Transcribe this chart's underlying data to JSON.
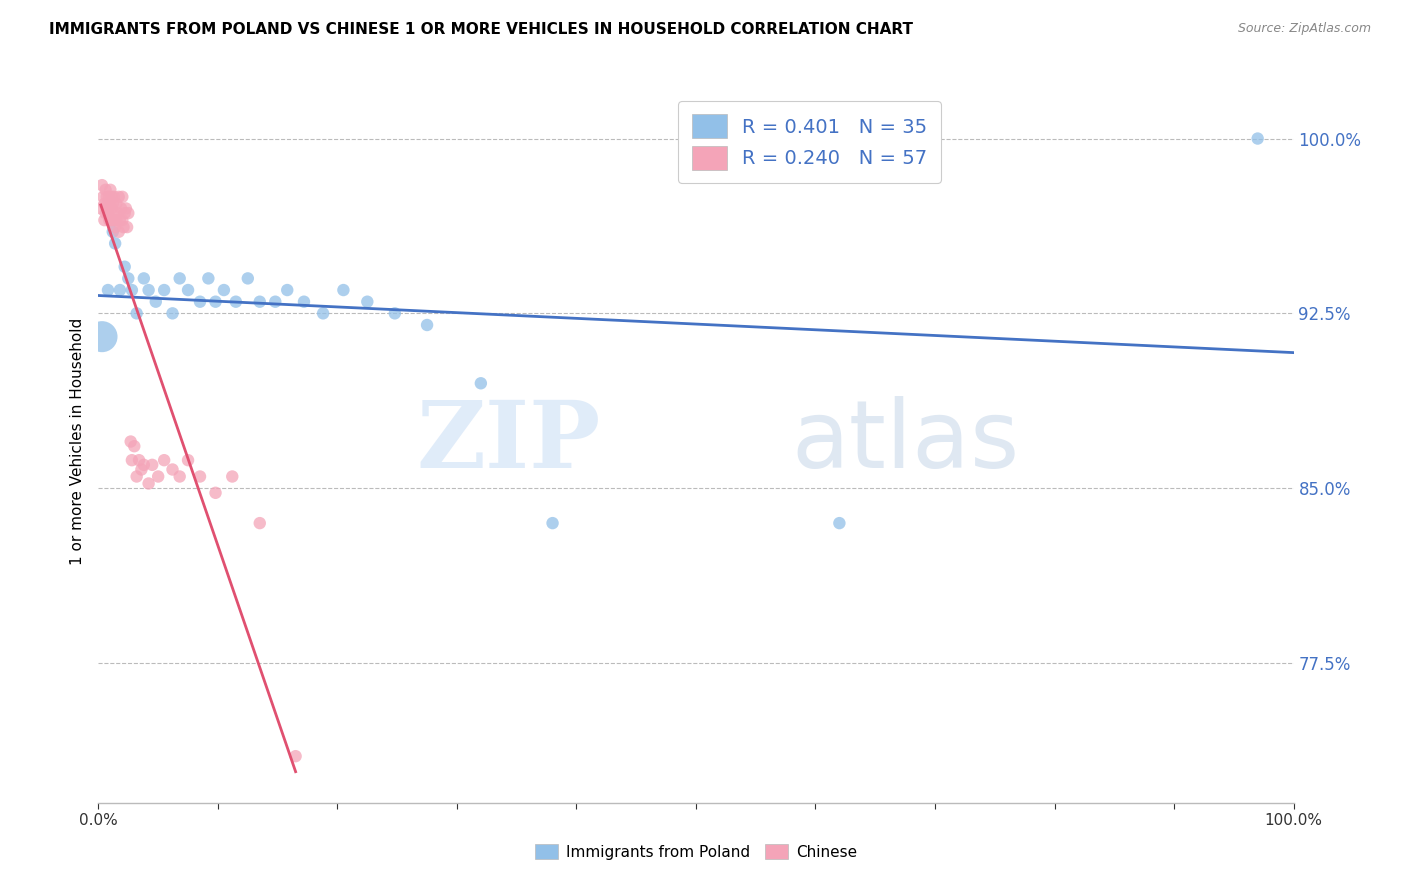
{
  "title": "IMMIGRANTS FROM POLAND VS CHINESE 1 OR MORE VEHICLES IN HOUSEHOLD CORRELATION CHART",
  "source": "Source: ZipAtlas.com",
  "ylabel": "1 or more Vehicles in Household",
  "xmin": 0.0,
  "xmax": 1.0,
  "ymin": 0.715,
  "ymax": 1.025,
  "yticks": [
    0.775,
    0.85,
    0.925,
    1.0
  ],
  "ytick_labels": [
    "77.5%",
    "85.0%",
    "92.5%",
    "100.0%"
  ],
  "xtick_positions": [
    0.0,
    0.1,
    0.2,
    0.3,
    0.4,
    0.5,
    0.6,
    0.7,
    0.8,
    0.9,
    1.0
  ],
  "xtick_labels": [
    "0.0%",
    "",
    "",
    "",
    "",
    "",
    "",
    "",
    "",
    "",
    "100.0%"
  ],
  "poland_color": "#92C0E8",
  "chinese_color": "#F4A4B8",
  "poland_line_color": "#4472C4",
  "chinese_line_color": "#E05070",
  "poland_R": 0.401,
  "poland_N": 35,
  "chinese_R": 0.24,
  "chinese_N": 57,
  "legend_label_poland": "Immigrants from Poland",
  "legend_label_chinese": "Chinese",
  "watermark_zip": "ZIP",
  "watermark_atlas": "atlas",
  "poland_x": [
    0.003,
    0.008,
    0.012,
    0.014,
    0.018,
    0.022,
    0.025,
    0.028,
    0.032,
    0.038,
    0.042,
    0.048,
    0.055,
    0.062,
    0.068,
    0.075,
    0.085,
    0.092,
    0.098,
    0.105,
    0.115,
    0.125,
    0.135,
    0.148,
    0.158,
    0.172,
    0.188,
    0.205,
    0.225,
    0.248,
    0.275,
    0.32,
    0.38,
    0.62,
    0.97
  ],
  "poland_y": [
    0.915,
    0.935,
    0.96,
    0.955,
    0.935,
    0.945,
    0.94,
    0.935,
    0.925,
    0.94,
    0.935,
    0.93,
    0.935,
    0.925,
    0.94,
    0.935,
    0.93,
    0.94,
    0.93,
    0.935,
    0.93,
    0.94,
    0.93,
    0.93,
    0.935,
    0.93,
    0.925,
    0.935,
    0.93,
    0.925,
    0.92,
    0.895,
    0.835,
    0.835,
    1.0
  ],
  "poland_size": [
    500,
    80,
    80,
    80,
    80,
    80,
    80,
    80,
    80,
    80,
    80,
    80,
    80,
    80,
    80,
    80,
    80,
    80,
    80,
    80,
    80,
    80,
    80,
    80,
    80,
    80,
    80,
    80,
    80,
    80,
    80,
    80,
    80,
    80,
    80
  ],
  "chinese_x": [
    0.002,
    0.003,
    0.004,
    0.005,
    0.005,
    0.006,
    0.006,
    0.007,
    0.007,
    0.008,
    0.008,
    0.009,
    0.009,
    0.01,
    0.01,
    0.01,
    0.011,
    0.011,
    0.012,
    0.012,
    0.013,
    0.013,
    0.014,
    0.014,
    0.015,
    0.015,
    0.016,
    0.017,
    0.017,
    0.018,
    0.019,
    0.02,
    0.02,
    0.021,
    0.022,
    0.023,
    0.024,
    0.025,
    0.027,
    0.028,
    0.03,
    0.032,
    0.034,
    0.036,
    0.038,
    0.042,
    0.045,
    0.05,
    0.055,
    0.062,
    0.068,
    0.075,
    0.085,
    0.098,
    0.112,
    0.135,
    0.165
  ],
  "chinese_y": [
    0.97,
    0.98,
    0.975,
    0.972,
    0.965,
    0.978,
    0.968,
    0.975,
    0.97,
    0.972,
    0.968,
    0.975,
    0.965,
    0.972,
    0.978,
    0.965,
    0.975,
    0.97,
    0.965,
    0.972,
    0.968,
    0.975,
    0.965,
    0.962,
    0.972,
    0.965,
    0.968,
    0.975,
    0.96,
    0.965,
    0.97,
    0.975,
    0.965,
    0.962,
    0.968,
    0.97,
    0.962,
    0.968,
    0.87,
    0.862,
    0.868,
    0.855,
    0.862,
    0.858,
    0.86,
    0.852,
    0.86,
    0.855,
    0.862,
    0.858,
    0.855,
    0.862,
    0.855,
    0.848,
    0.855,
    0.835,
    0.735
  ],
  "chinese_size": [
    80,
    80,
    80,
    80,
    80,
    80,
    80,
    80,
    80,
    80,
    80,
    80,
    80,
    80,
    80,
    80,
    80,
    80,
    80,
    80,
    80,
    80,
    80,
    80,
    80,
    80,
    80,
    80,
    80,
    80,
    80,
    80,
    80,
    80,
    80,
    80,
    80,
    80,
    80,
    80,
    80,
    80,
    80,
    80,
    80,
    80,
    80,
    80,
    80,
    80,
    80,
    80,
    80,
    80,
    80,
    80,
    80
  ]
}
